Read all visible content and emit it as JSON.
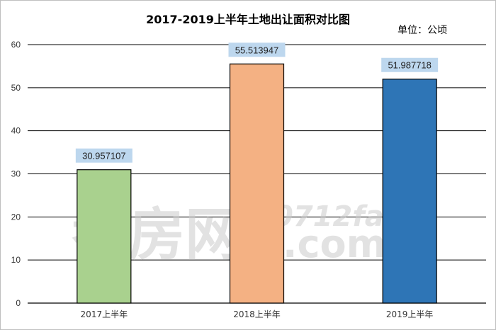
{
  "chart_data": {
    "type": "bar",
    "title": "2017-2019上半年土地出让面积对比图",
    "unit": "单位：公顷",
    "categories": [
      "2017上半年",
      "2018上半年",
      "2019上半年"
    ],
    "values": [
      30.957107,
      55.513947,
      51.987718
    ],
    "data_labels": [
      "30.957107",
      "55.513947",
      "51.987718"
    ],
    "bar_colors": [
      "#a9d18e",
      "#f4b183",
      "#2e75b6"
    ],
    "label_bg": "#bdd7ee",
    "ylim": [
      0,
      60
    ],
    "yticks": [
      0,
      10,
      20,
      30,
      40,
      50,
      60
    ],
    "grid": true,
    "legend": "none"
  },
  "watermark": {
    "main": "孝房网",
    "sub1": "0712fang",
    "sub2": ".com"
  }
}
